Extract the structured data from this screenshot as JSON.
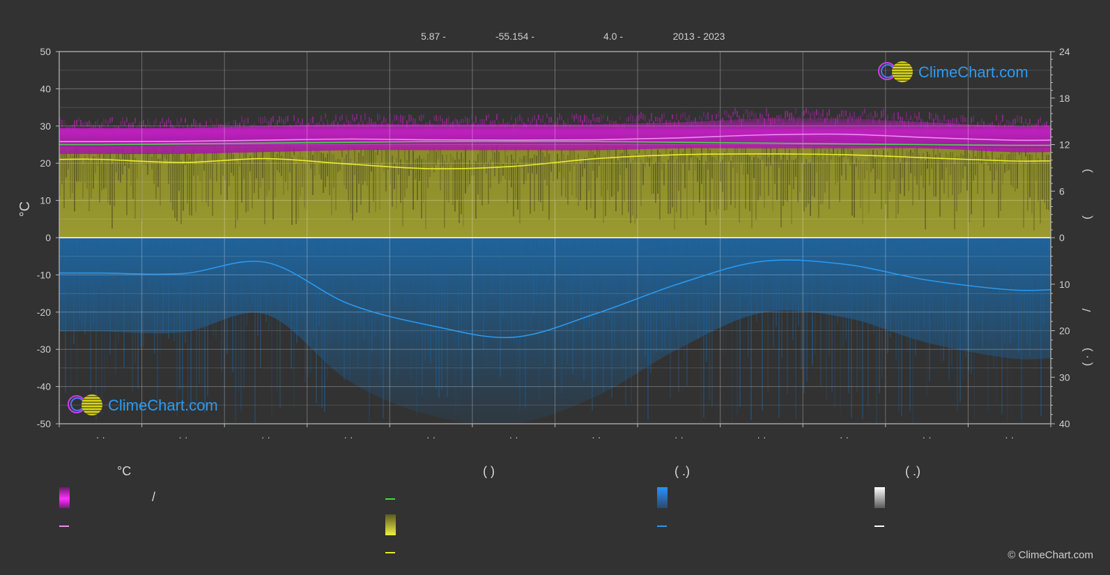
{
  "header": {
    "items": [
      "5.87 -",
      "-55.154 -",
      "4.0 -",
      "2013 - 2023"
    ]
  },
  "chart_data": {
    "type": "area",
    "left_axis": {
      "label": "°C",
      "ylim": [
        -50,
        50
      ],
      "ticks": [
        50,
        40,
        30,
        20,
        10,
        0,
        -10,
        -20,
        -30,
        -40,
        -50
      ]
    },
    "right_axis_top": {
      "label": ")",
      "ylim": [
        0,
        24
      ],
      "ticks": [
        24,
        18,
        12,
        6,
        0
      ]
    },
    "right_axis_bottom": {
      "label": "( · )",
      "ylim": [
        0,
        40
      ],
      "ticks": [
        0,
        10,
        20,
        30,
        40
      ]
    },
    "right_side_labels": [
      ")",
      "(",
      "/",
      "( · )"
    ],
    "x_tick_labels": [
      "· ·",
      "· ·",
      "· ·",
      "· ·",
      "· ·",
      "· ·",
      "· ·",
      "· ·",
      "· ·",
      "· ·",
      "· ·",
      "· ·"
    ],
    "months": 12,
    "series": [
      {
        "key": "temp_max_band",
        "color": "#c71fc7",
        "values": [
          29.5,
          29.5,
          30,
          30.5,
          30.5,
          30.5,
          30.5,
          31,
          32,
          32,
          31,
          30
        ]
      },
      {
        "key": "temp_min_band",
        "color": "#c71fc7",
        "values": [
          22.5,
          22.5,
          23,
          23.5,
          23.5,
          23.5,
          23.5,
          24,
          24,
          24,
          24,
          23
        ]
      },
      {
        "key": "temp_mean",
        "color": "#f08cf0",
        "values": [
          25.8,
          25.9,
          26.2,
          26.5,
          26.3,
          26.2,
          26.3,
          26.8,
          27.6,
          27.8,
          26.9,
          26.2
        ]
      },
      {
        "key": "daylight",
        "color": "#44dd44",
        "values": [
          12.0,
          12.1,
          12.2,
          12.3,
          12.4,
          12.4,
          12.4,
          12.3,
          12.2,
          12.1,
          12.0,
          11.9
        ]
      },
      {
        "key": "sunshine",
        "color": "#e8e830",
        "values": [
          10.1,
          9.7,
          10.2,
          9.5,
          8.9,
          9.2,
          10.2,
          10.7,
          10.8,
          10.7,
          10.3,
          9.9
        ]
      },
      {
        "key": "precipitation",
        "color": "#2a8ae0",
        "values": [
          7.6,
          7.7,
          5.3,
          14.2,
          18.9,
          21.4,
          16.3,
          9.9,
          5.1,
          5.7,
          9.1,
          11.2
        ]
      }
    ]
  },
  "legend": {
    "col1_title": "°C",
    "col1_row1_sep": "/",
    "col2_title": "(          )",
    "col3_title": "(    .)",
    "col4_title": "(    .)"
  },
  "logo_text": "ClimeChart.com",
  "copyright": "© ClimeChart.com"
}
